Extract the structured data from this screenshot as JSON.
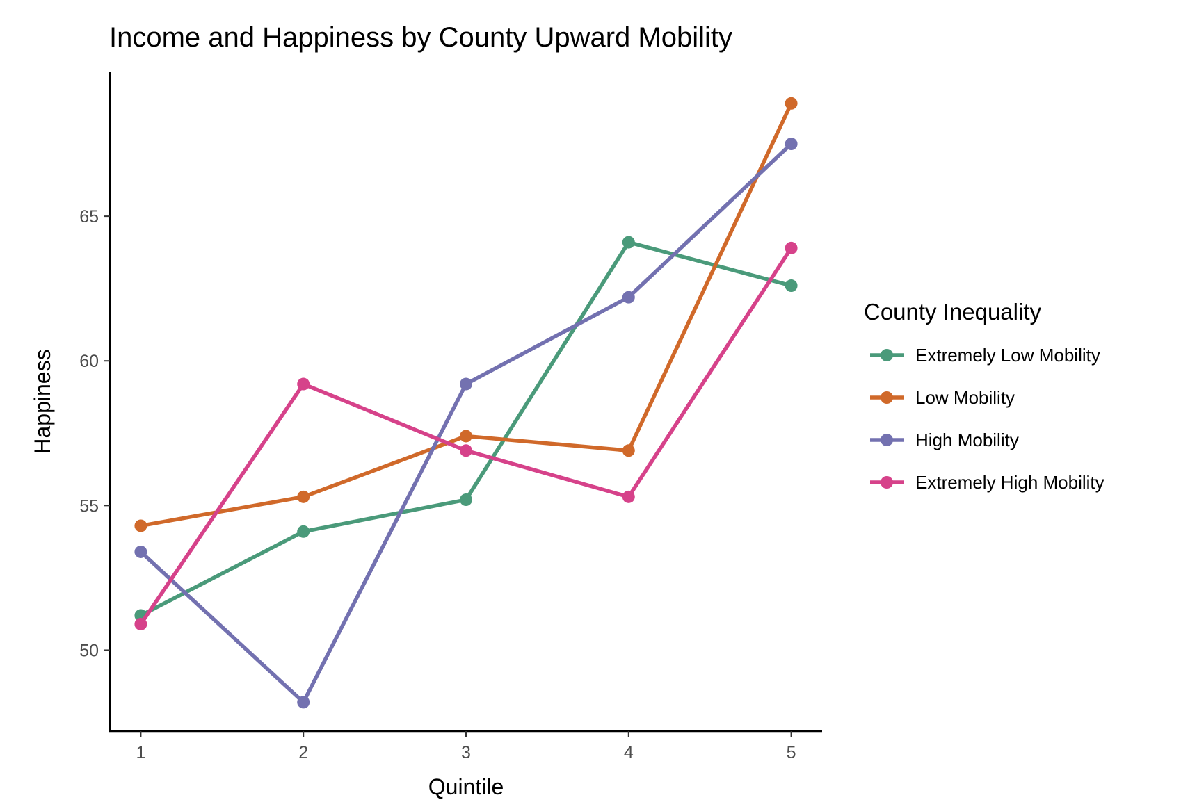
{
  "chart_data": {
    "type": "line",
    "title": "Income and Happiness by County Upward Mobility",
    "xlabel": "Quintile",
    "ylabel": "Happiness",
    "x": [
      1,
      2,
      3,
      4,
      5
    ],
    "xticks": [
      "1",
      "2",
      "3",
      "4",
      "5"
    ],
    "yticks": [
      50,
      55,
      60,
      65
    ],
    "xlim": [
      0.81,
      5.19
    ],
    "ylim": [
      47.2,
      70.0
    ],
    "grid": false,
    "legend": {
      "title": "County Inequality",
      "position": "right"
    },
    "series": [
      {
        "name": "Extremely Low Mobility",
        "color": "#4a9a7a",
        "values": [
          51.2,
          54.1,
          55.2,
          64.1,
          62.6
        ]
      },
      {
        "name": "Low Mobility",
        "color": "#d0692a",
        "values": [
          54.3,
          55.3,
          57.4,
          56.9,
          68.9
        ]
      },
      {
        "name": "High Mobility",
        "color": "#7371b0",
        "values": [
          53.4,
          48.2,
          59.2,
          62.2,
          67.5
        ]
      },
      {
        "name": "Extremely High Mobility",
        "color": "#d6428a",
        "values": [
          50.9,
          59.2,
          56.9,
          55.3,
          63.9
        ]
      }
    ]
  }
}
